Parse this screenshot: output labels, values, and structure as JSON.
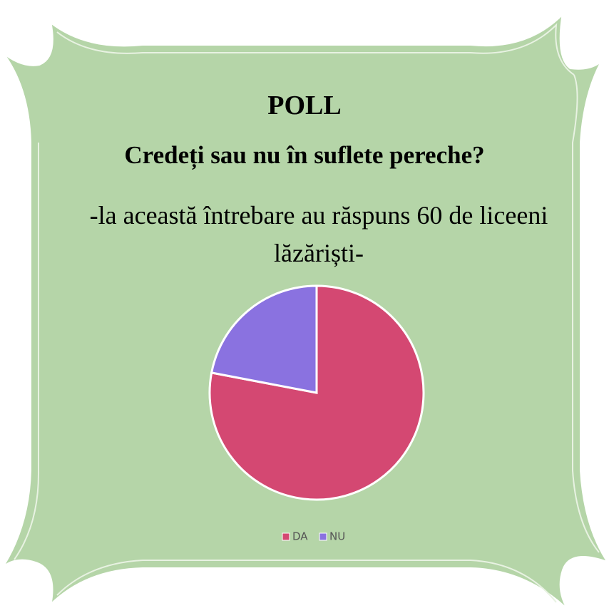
{
  "chart_data": {
    "type": "pie",
    "title": "POLL",
    "subtitle": "Credeți sau nu în suflete pereche?",
    "annotation": "-la această întrebare au răspuns 60 de liceeni lăzăriști-",
    "categories": [
      "DA",
      "NU"
    ],
    "values": [
      78,
      22
    ],
    "colors": [
      "#d44872",
      "#8a72e0"
    ],
    "legend": "bottom"
  }
}
